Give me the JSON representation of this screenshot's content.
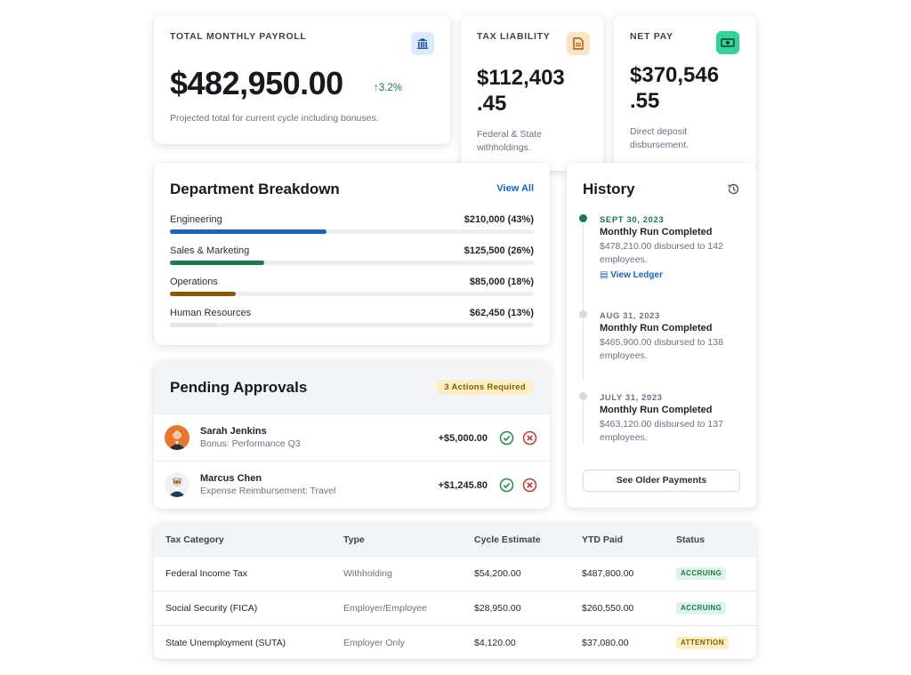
{
  "colors": {
    "blue": "#1565c0",
    "green": "#1a7a4c",
    "brown": "#8a5a00",
    "gray_bar": "#e2e4e9",
    "accent_green": "#1f8a4c",
    "danger": "#c0392b"
  },
  "kpis": {
    "total": {
      "label": "TOTAL MONTHLY PAYROLL",
      "value": "$482,950.00",
      "change": "3.2%",
      "sub": "Projected total for current cycle including bonuses.",
      "icon": "bank-icon"
    },
    "tax": {
      "label": "TAX LIABILITY",
      "value_line1": "$112,403",
      "value_line2": ".45",
      "sub_line1": "Federal & State",
      "sub_line2": "withholdings.",
      "icon": "document-icon"
    },
    "net": {
      "label": "NET PAY",
      "value_line1": "$370,546",
      "value_line2": ".55",
      "sub_line1": "Direct deposit",
      "sub_line2": "disbursement.",
      "icon": "cash-icon"
    }
  },
  "department": {
    "title": "Department Breakdown",
    "view_all": "View All",
    "items": [
      {
        "name": "Engineering",
        "value": "$210,000 (43%)",
        "pct": 43,
        "color": "#1565c0"
      },
      {
        "name": "Sales & Marketing",
        "value": "$125,500 (26%)",
        "pct": 26,
        "color": "#1a7a4c"
      },
      {
        "name": "Operations",
        "value": "$85,000 (18%)",
        "pct": 18,
        "color": "#8a5a00"
      },
      {
        "name": "Human Resources",
        "value": "$62,450 (13%)",
        "pct": 13,
        "color": "#e2e4e9"
      }
    ]
  },
  "approvals": {
    "title": "Pending Approvals",
    "badge": "3 Actions Required",
    "items": [
      {
        "name": "Sarah Jenkins",
        "desc": "Bonus: Performance Q3",
        "amount": "+$5,000.00"
      },
      {
        "name": "Marcus Chen",
        "desc": "Expense Reimbursement: Travel",
        "amount": "+$1,245.80"
      }
    ]
  },
  "history": {
    "title": "History",
    "icon": "history-icon",
    "items": [
      {
        "date": "SEPT 30, 2023",
        "title": "Monthly Run Completed",
        "desc": "$478,210.00 disbursed to 142 employees.",
        "link": "View Ledger"
      },
      {
        "date": "AUG 31, 2023",
        "title": "Monthly Run Completed",
        "desc": "$465,900.00 disbursed to 138 employees."
      },
      {
        "date": "JULY 31, 2023",
        "title": "Monthly Run Completed",
        "desc": "$463,120.00 disbursed to 137 employees."
      }
    ],
    "older_button": "See Older Payments"
  },
  "tax_table": {
    "headers": [
      "Tax Category",
      "Type",
      "Cycle Estimate",
      "YTD Paid",
      "Status"
    ],
    "rows": [
      {
        "category": "Federal Income Tax",
        "type": "Withholding",
        "cycle": "$54,200.00",
        "ytd": "$487,800.00",
        "status": "ACCRUING"
      },
      {
        "category": "Social Security (FICA)",
        "type": "Employer/Employee",
        "cycle": "$28,950.00",
        "ytd": "$260,550.00",
        "status": "ACCRUING"
      },
      {
        "category": "State Unemployment (SUTA)",
        "type": "Employer Only",
        "cycle": "$4,120.00",
        "ytd": "$37,080.00",
        "status": "ATTENTION"
      }
    ]
  }
}
